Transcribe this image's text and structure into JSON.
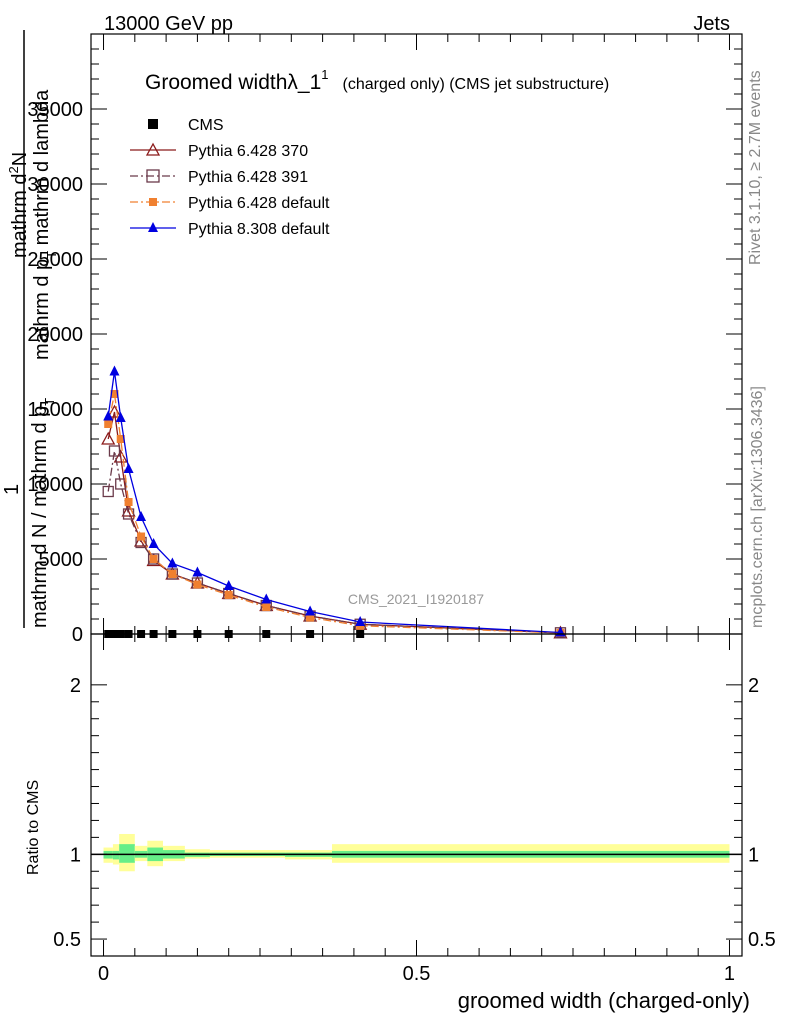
{
  "header": {
    "left": "13000 GeV pp",
    "right": "Jets"
  },
  "side_labels": {
    "rivet": "Rivet 3.1.10, ≥ 2.7M events",
    "source": "mcplots.cern.ch [arXiv:1306.3436]"
  },
  "watermark": "CMS_2021_I1920187",
  "title": {
    "main": "Groomed width",
    "lambda": "λ_1",
    "sup": "1",
    "tail": "(charged only) (CMS jet substructure)"
  },
  "ylabel_main": {
    "numer1": "mathrm d",
    "numer1_sup": "2",
    "numer1_tail": "N",
    "numer2": "mathrm d p",
    "numer2_sub": "T",
    "numer2_tail": " mathrm d lambda",
    "frac_left": "1",
    "denom": "mathrm d N / mathrm d p",
    "denom_sub": "T"
  },
  "ylabel_ratio": "Ratio to CMS",
  "xlabel": "groomed width (charged-only)",
  "legend": [
    {
      "label": "CMS",
      "color": "#000000",
      "marker": "square",
      "dash": "none"
    },
    {
      "label": "Pythia 6.428 370",
      "color": "#8b1a1a",
      "marker": "triangle-open",
      "dash": "solid"
    },
    {
      "label": "Pythia 6.428 391",
      "color": "#6b3a4a",
      "marker": "square-open",
      "dash": "dashdot"
    },
    {
      "label": "Pythia 6.428 default",
      "color": "#f08030",
      "marker": "square-filled",
      "dash": "dashdot"
    },
    {
      "label": "Pythia 8.308 default",
      "color": "#0000e0",
      "marker": "triangle-filled",
      "dash": "solid"
    }
  ],
  "chart_data": {
    "type": "line",
    "x": [
      0.0075,
      0.0175,
      0.0275,
      0.04,
      0.06,
      0.08,
      0.11,
      0.15,
      0.2,
      0.26,
      0.33,
      0.41,
      0.73
    ],
    "xlim": [
      -0.02,
      1.02
    ],
    "ylim": [
      0,
      40000
    ],
    "ratio_ylim": [
      0.4,
      2.3
    ],
    "x_ticks": [
      0,
      0.5,
      1
    ],
    "x_tick_labels": [
      "0",
      "0.5",
      "1"
    ],
    "y_ticks": [
      0,
      5000,
      10000,
      15000,
      20000,
      25000,
      30000,
      35000
    ],
    "y_tick_labels": [
      "0",
      "5000",
      "10000",
      "15000",
      "20000",
      "25000",
      "30000",
      "35000"
    ],
    "ratio_ticks": [
      0.5,
      1,
      2
    ],
    "ratio_tick_labels": [
      "0.5",
      "1",
      "2"
    ],
    "series": [
      {
        "name": "CMS",
        "values": [
          0,
          0,
          0,
          0,
          0,
          0,
          0,
          0,
          0,
          0,
          0,
          0,
          0
        ]
      },
      {
        "name": "Pythia 6.428 370",
        "values": [
          13000,
          14800,
          11800,
          8200,
          6200,
          4900,
          4000,
          3400,
          2700,
          1900,
          1200,
          650,
          80
        ]
      },
      {
        "name": "Pythia 6.428 391",
        "values": [
          9500,
          12200,
          10000,
          8000,
          6100,
          5000,
          4000,
          3400,
          2700,
          1900,
          1200,
          650,
          80
        ]
      },
      {
        "name": "Pythia 6.428 default",
        "values": [
          14000,
          16000,
          13000,
          8800,
          6500,
          5000,
          4000,
          3300,
          2600,
          1800,
          1100,
          550,
          70
        ]
      },
      {
        "name": "Pythia 8.308 default",
        "values": [
          14500,
          17500,
          14400,
          11000,
          7800,
          6000,
          4700,
          4100,
          3200,
          2300,
          1500,
          800,
          100
        ]
      }
    ],
    "ratio_bands": [
      {
        "x0": 0.0,
        "x1": 0.015,
        "inner": [
          0.975,
          1.02
        ],
        "outer": [
          0.95,
          1.04
        ]
      },
      {
        "x0": 0.015,
        "x1": 0.025,
        "inner": [
          0.97,
          1.02
        ],
        "outer": [
          0.94,
          1.06
        ]
      },
      {
        "x0": 0.025,
        "x1": 0.05,
        "inner": [
          0.95,
          1.06
        ],
        "outer": [
          0.9,
          1.12
        ]
      },
      {
        "x0": 0.05,
        "x1": 0.07,
        "inner": [
          0.98,
          1.02
        ],
        "outer": [
          0.96,
          1.05
        ]
      },
      {
        "x0": 0.07,
        "x1": 0.095,
        "inner": [
          0.96,
          1.04
        ],
        "outer": [
          0.93,
          1.08
        ]
      },
      {
        "x0": 0.095,
        "x1": 0.13,
        "inner": [
          0.975,
          1.025
        ],
        "outer": [
          0.96,
          1.05
        ]
      },
      {
        "x0": 0.13,
        "x1": 0.17,
        "inner": [
          0.985,
          1.01
        ],
        "outer": [
          0.975,
          1.03
        ]
      },
      {
        "x0": 0.17,
        "x1": 0.29,
        "inner": [
          0.99,
          1.01
        ],
        "outer": [
          0.98,
          1.025
        ]
      },
      {
        "x0": 0.29,
        "x1": 0.365,
        "inner": [
          0.985,
          1.01
        ],
        "outer": [
          0.97,
          1.025
        ]
      },
      {
        "x0": 0.365,
        "x1": 1.0,
        "inner": [
          0.98,
          1.02
        ],
        "outer": [
          0.95,
          1.06
        ]
      }
    ]
  }
}
